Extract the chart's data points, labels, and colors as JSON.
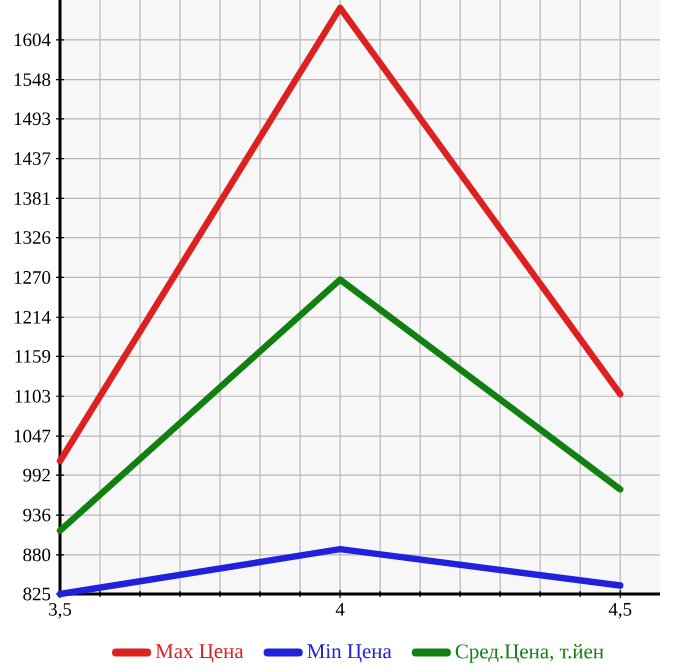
{
  "chart_data": {
    "type": "line",
    "x": [
      3.5,
      4,
      4.5
    ],
    "xlim": [
      3.5,
      4.571
    ],
    "xticks": [
      {
        "value": 3.5,
        "label": "3,5"
      },
      {
        "value": 4,
        "label": "4"
      },
      {
        "value": 4.5,
        "label": "4,5"
      }
    ],
    "ylim": [
      825,
      1660
    ],
    "yticks": [
      825,
      880,
      936,
      992,
      1047,
      1103,
      1159,
      1214,
      1270,
      1326,
      1381,
      1437,
      1493,
      1548,
      1604
    ],
    "grid": true,
    "legend": "bottom",
    "marker": "none",
    "line_style": "solid",
    "series": [
      {
        "name": "Max Цена",
        "color": "#dd2020",
        "values": [
          1012,
          1649,
          1106
        ]
      },
      {
        "name": "Min Цена",
        "color": "#2020dd",
        "values": [
          825,
          888,
          837
        ]
      },
      {
        "name": "Сред.Цена, т.йен",
        "color": "#118011",
        "values": [
          914,
          1267,
          972
        ]
      }
    ]
  }
}
